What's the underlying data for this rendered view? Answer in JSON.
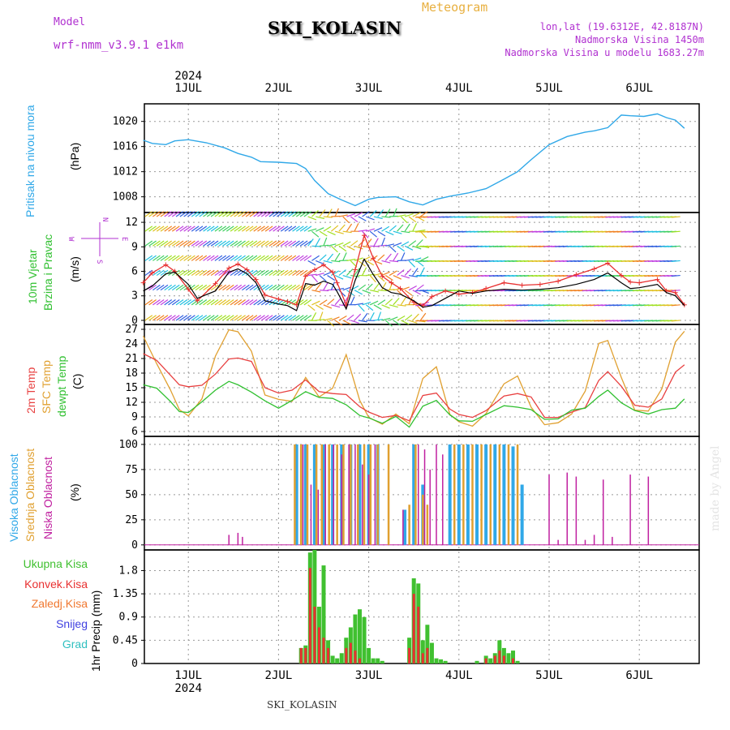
{
  "header": {
    "model_label": "Model",
    "model_name": "wrf-nmm_v3.9.1 e1km",
    "title": "SKI_KOLASIN",
    "meteogram": "Meteogram",
    "lonlat": "lon,lat (19.6312E, 42.8187N)",
    "altitude": "Nadmorska Visina 1450m",
    "model_altitude": "Nadmorska Visina u modelu 1683.27m",
    "year_top": "2024",
    "year_bottom": "2024",
    "footer": "SKI_KOLASIN",
    "made_by": "made by Angel"
  },
  "colors": {
    "pressure": "#30a8e8",
    "wind_speed": "#000000",
    "wind_gust": "#e83030",
    "temp2m": "#e84040",
    "sfc_temp": "#e0a030",
    "dewpoint": "#30c030",
    "high_cloud": "#30a8e8",
    "mid_cloud": "#e0a030",
    "low_cloud": "#c020a0",
    "total_precip": "#40c030",
    "convective": "#e83030",
    "frozen": "#f07830",
    "snow": "#4040e0",
    "graupel": "#30c0c0"
  },
  "chart_data": [
    {
      "type": "line",
      "panel": "pressure",
      "labels": [
        "Pritisak na nivou mora",
        "(hPa)"
      ],
      "x_ticks": [
        "1JUL",
        "2JUL",
        "3JUL",
        "4JUL",
        "5JUL",
        "6JUL"
      ],
      "x_range_days": [
        0.5,
        6.5
      ],
      "ylim": [
        1005.5,
        1022.8
      ],
      "y_ticks": [
        1008,
        1012,
        1016,
        1020
      ],
      "series": [
        {
          "x": [
            0.5,
            0.6,
            0.75,
            0.85,
            1.0,
            1.2,
            1.4,
            1.55,
            1.7,
            1.8,
            2.0,
            2.2,
            2.3,
            2.4,
            2.55,
            2.7,
            2.85,
            3.0,
            3.1,
            3.3,
            3.45,
            3.6,
            3.75,
            3.9,
            4.1,
            4.3,
            4.5,
            4.65,
            4.8,
            5.0,
            5.2,
            5.4,
            5.5,
            5.65,
            5.8,
            5.9,
            6.05,
            6.2,
            6.3,
            6.4,
            6.5
          ],
          "y": [
            1017.0,
            1016.5,
            1016.3,
            1016.9,
            1017.1,
            1016.6,
            1015.8,
            1014.9,
            1014.3,
            1013.6,
            1013.5,
            1013.3,
            1012.5,
            1010.6,
            1008.5,
            1007.5,
            1006.6,
            1007.6,
            1007.9,
            1008.0,
            1007.2,
            1006.7,
            1007.6,
            1008.1,
            1008.6,
            1009.3,
            1010.8,
            1012.0,
            1013.9,
            1016.3,
            1017.6,
            1018.3,
            1018.5,
            1019.0,
            1021.0,
            1020.9,
            1020.8,
            1021.2,
            1020.6,
            1020.2,
            1018.9
          ]
        }
      ]
    },
    {
      "type": "line",
      "panel": "wind",
      "labels": [
        "10m Vjetar",
        "Brzina i Pravac",
        "(m/s)",
        "N",
        "E",
        "S",
        "W"
      ],
      "ylim": [
        -0.5,
        13.2
      ],
      "y_ticks": [
        0,
        3,
        6,
        9,
        12
      ],
      "series": [
        {
          "name": "speed",
          "x": [
            0.5,
            0.6,
            0.75,
            0.85,
            1.0,
            1.1,
            1.3,
            1.45,
            1.55,
            1.65,
            1.75,
            1.85,
            2.0,
            2.1,
            2.2,
            2.3,
            2.4,
            2.5,
            2.6,
            2.65,
            2.75,
            2.85,
            2.95,
            3.05,
            3.15,
            3.25,
            3.35,
            3.5,
            3.6,
            3.7,
            3.85,
            4.0,
            4.15,
            4.3,
            4.5,
            4.7,
            4.9,
            5.1,
            5.3,
            5.5,
            5.65,
            5.8,
            5.9,
            6.0,
            6.2,
            6.3,
            6.4,
            6.5
          ],
          "y": [
            3.6,
            4.2,
            5.7,
            5.9,
            4.4,
            2.7,
            3.6,
            5.9,
            6.3,
            5.7,
            4.6,
            2.4,
            2.0,
            1.8,
            1.2,
            4.5,
            4.3,
            4.8,
            4.4,
            3.5,
            1.4,
            4.9,
            7.5,
            5.6,
            4.0,
            3.4,
            3.2,
            2.4,
            1.6,
            1.8,
            2.7,
            3.6,
            3.3,
            3.6,
            3.8,
            3.7,
            3.8,
            4.0,
            4.4,
            5.0,
            5.8,
            4.6,
            3.9,
            4.0,
            4.4,
            3.4,
            3.0,
            1.8
          ]
        },
        {
          "name": "gust",
          "x": [
            0.5,
            0.6,
            0.75,
            0.85,
            1.0,
            1.1,
            1.3,
            1.45,
            1.55,
            1.65,
            1.75,
            1.85,
            2.0,
            2.1,
            2.2,
            2.3,
            2.4,
            2.5,
            2.6,
            2.65,
            2.75,
            2.85,
            2.95,
            3.05,
            3.15,
            3.25,
            3.35,
            3.5,
            3.6,
            3.7,
            3.85,
            4.0,
            4.15,
            4.3,
            4.5,
            4.7,
            4.9,
            5.1,
            5.3,
            5.5,
            5.65,
            5.8,
            5.9,
            6.0,
            6.2,
            6.3,
            6.4,
            6.5
          ],
          "y": [
            4.6,
            5.8,
            6.8,
            6.0,
            3.8,
            2.4,
            4.5,
            6.4,
            6.9,
            6.2,
            5.0,
            3.1,
            2.6,
            2.3,
            1.9,
            5.4,
            6.2,
            6.8,
            5.9,
            4.6,
            1.9,
            6.2,
            10.4,
            7.6,
            5.4,
            4.6,
            3.9,
            2.2,
            1.8,
            2.9,
            3.6,
            3.2,
            3.4,
            3.9,
            4.6,
            4.3,
            4.4,
            4.8,
            5.6,
            6.3,
            7.0,
            5.5,
            4.7,
            4.6,
            5.0,
            3.6,
            3.4,
            1.9
          ]
        }
      ]
    },
    {
      "type": "line",
      "panel": "temperature",
      "labels": [
        "2m Temp",
        "SFC Temp",
        "dewpt Temp",
        "(C)"
      ],
      "ylim": [
        5,
        28
      ],
      "y_ticks": [
        6,
        9,
        12,
        15,
        18,
        21,
        24,
        27
      ],
      "series": [
        {
          "name": "2m Temp",
          "x": [
            0.5,
            0.65,
            0.8,
            0.9,
            1.0,
            1.15,
            1.3,
            1.45,
            1.55,
            1.7,
            1.85,
            2.0,
            2.15,
            2.3,
            2.45,
            2.6,
            2.75,
            2.9,
            3.0,
            3.15,
            3.3,
            3.45,
            3.6,
            3.75,
            3.9,
            4.0,
            4.15,
            4.3,
            4.5,
            4.65,
            4.8,
            4.95,
            5.1,
            5.25,
            5.4,
            5.55,
            5.65,
            5.8,
            5.95,
            6.1,
            6.25,
            6.4,
            6.5
          ],
          "y": [
            22.0,
            20.6,
            17.6,
            15.6,
            15.2,
            15.5,
            17.8,
            20.9,
            21.1,
            20.4,
            15.0,
            13.9,
            14.5,
            16.6,
            14.2,
            13.8,
            13.6,
            11.1,
            10.0,
            8.9,
            9.3,
            8.2,
            13.4,
            13.9,
            10.6,
            9.5,
            8.9,
            10.3,
            13.3,
            13.8,
            13.1,
            8.9,
            8.9,
            10.0,
            10.9,
            16.5,
            18.3,
            15.3,
            11.4,
            11.0,
            12.7,
            18.2,
            19.7
          ]
        },
        {
          "name": "SFC Temp",
          "x": [
            0.5,
            0.65,
            0.8,
            0.9,
            1.0,
            1.15,
            1.3,
            1.45,
            1.55,
            1.7,
            1.85,
            2.0,
            2.15,
            2.3,
            2.45,
            2.6,
            2.75,
            2.9,
            3.0,
            3.15,
            3.3,
            3.45,
            3.6,
            3.75,
            3.9,
            4.0,
            4.15,
            4.3,
            4.5,
            4.65,
            4.8,
            4.95,
            5.1,
            5.25,
            5.4,
            5.55,
            5.65,
            5.8,
            5.95,
            6.1,
            6.25,
            6.4,
            6.5
          ],
          "y": [
            25.6,
            19.9,
            14.6,
            10.5,
            9.2,
            12.7,
            21.5,
            26.9,
            26.5,
            22.5,
            13.5,
            12.6,
            12.2,
            17.1,
            13.1,
            14.9,
            21.8,
            12.4,
            8.9,
            7.5,
            9.6,
            7.6,
            16.9,
            19.3,
            9.5,
            8.0,
            7.1,
            9.7,
            15.8,
            17.4,
            11.0,
            7.4,
            7.8,
            9.6,
            14.3,
            24.1,
            24.7,
            17.1,
            10.4,
            10.2,
            14.8,
            24.4,
            26.6
          ]
        },
        {
          "name": "dewpt Temp",
          "x": [
            0.5,
            0.65,
            0.8,
            0.9,
            1.0,
            1.15,
            1.3,
            1.45,
            1.55,
            1.7,
            1.85,
            2.0,
            2.15,
            2.3,
            2.45,
            2.6,
            2.75,
            2.9,
            3.0,
            3.15,
            3.3,
            3.45,
            3.6,
            3.75,
            3.9,
            4.0,
            4.15,
            4.3,
            4.5,
            4.65,
            4.8,
            4.95,
            5.1,
            5.25,
            5.4,
            5.55,
            5.65,
            5.8,
            5.95,
            6.1,
            6.25,
            6.4,
            6.5
          ],
          "y": [
            15.6,
            14.9,
            12.2,
            10.1,
            9.9,
            12.1,
            14.5,
            16.3,
            15.6,
            14.1,
            12.3,
            10.8,
            12.4,
            14.2,
            13.0,
            12.8,
            11.5,
            9.3,
            8.8,
            7.7,
            9.1,
            6.9,
            11.2,
            12.4,
            9.4,
            8.2,
            8.1,
            9.5,
            11.3,
            11.0,
            10.5,
            8.5,
            8.6,
            10.4,
            10.8,
            13.2,
            14.5,
            11.9,
            10.3,
            9.6,
            10.5,
            10.8,
            12.7
          ]
        }
      ]
    },
    {
      "type": "bar",
      "panel": "cloud",
      "labels": [
        "Visoka Oblacnost",
        "Srednja Oblacnost",
        "Niska Oblacnost",
        "(%)"
      ],
      "ylim": [
        -5,
        108
      ],
      "y_ticks": [
        0,
        25,
        50,
        75,
        100
      ],
      "series": [
        {
          "name": "Visoka Oblacnost",
          "x": [
            2.2,
            2.3,
            2.4,
            2.5,
            2.6,
            2.7,
            2.8,
            2.9,
            3.0,
            3.1,
            3.4,
            3.5,
            3.6,
            3.9,
            4.0,
            4.1,
            4.2,
            4.3,
            4.4,
            4.5,
            4.6,
            4.7
          ],
          "values": [
            100,
            100,
            100,
            100,
            100,
            100,
            100,
            100,
            100,
            100,
            35,
            100,
            60,
            100,
            100,
            100,
            100,
            100,
            100,
            100,
            98,
            60
          ]
        },
        {
          "name": "Srednja Oblacnost",
          "x": [
            2.18,
            2.25,
            2.32,
            2.42,
            2.48,
            2.56,
            2.65,
            2.72,
            2.8,
            2.88,
            2.95,
            3.02,
            3.1,
            3.22,
            3.45,
            3.52,
            3.6,
            3.65,
            3.95,
            4.05,
            4.15,
            4.25,
            4.35,
            4.45,
            4.55,
            4.65
          ],
          "values": [
            100,
            100,
            100,
            100,
            100,
            100,
            100,
            100,
            100,
            100,
            100,
            100,
            100,
            100,
            40,
            100,
            50,
            40,
            100,
            100,
            100,
            100,
            100,
            100,
            100,
            100
          ]
        },
        {
          "name": "Niska Oblacnost",
          "x": [
            1.45,
            1.55,
            1.6,
            2.27,
            2.36,
            2.44,
            2.52,
            2.61,
            2.7,
            2.78,
            2.85,
            2.93,
            3.0,
            3.07,
            3.38,
            3.55,
            3.62,
            3.68,
            3.75,
            3.82,
            5.0,
            5.1,
            5.2,
            5.3,
            5.4,
            5.5,
            5.6,
            5.7,
            5.9,
            6.1
          ],
          "values": [
            10,
            12,
            8,
            100,
            60,
            55,
            100,
            100,
            90,
            100,
            100,
            80,
            70,
            100,
            35,
            100,
            95,
            75,
            100,
            90,
            70,
            5,
            72,
            68,
            5,
            10,
            65,
            8,
            70,
            68
          ]
        }
      ]
    },
    {
      "type": "bar",
      "panel": "precip",
      "labels": [
        "Ukupna Kisa",
        "Konvek.Kisa",
        "Zaledj.Kisa",
        "Snijeg",
        "Grad",
        "1hr Precip (mm)"
      ],
      "ylim": [
        0,
        2.2
      ],
      "y_ticks": [
        0,
        0.45,
        0.9,
        1.35,
        1.8
      ],
      "y_tick_labels": [
        "0",
        "0.45",
        "0.9",
        "1.35",
        "1.8"
      ],
      "series": [
        {
          "name": "Ukupna Kisa",
          "x": [
            2.25,
            2.3,
            2.35,
            2.4,
            2.45,
            2.5,
            2.55,
            2.6,
            2.65,
            2.7,
            2.75,
            2.8,
            2.85,
            2.9,
            2.95,
            3.0,
            3.05,
            3.1,
            3.15,
            3.45,
            3.5,
            3.55,
            3.6,
            3.65,
            3.7,
            3.75,
            3.8,
            3.85,
            4.2,
            4.3,
            4.35,
            4.4,
            4.45,
            4.5,
            4.55,
            4.6,
            4.65
          ],
          "values": [
            0.3,
            0.35,
            2.15,
            2.2,
            1.1,
            1.9,
            0.45,
            0.15,
            0.1,
            0.2,
            0.5,
            0.7,
            0.95,
            1.05,
            0.9,
            0.3,
            0.1,
            0.1,
            0.05,
            0.5,
            1.65,
            1.55,
            0.45,
            0.75,
            0.4,
            0.1,
            0.08,
            0.05,
            0.05,
            0.15,
            0.1,
            0.2,
            0.45,
            0.3,
            0.2,
            0.25,
            0.05
          ]
        },
        {
          "name": "Konvek.Kisa",
          "x": [
            2.25,
            2.3,
            2.35,
            2.4,
            2.45,
            2.5,
            2.55,
            2.75,
            2.8,
            2.85,
            2.9,
            3.45,
            3.5,
            3.55,
            3.6,
            3.65,
            4.3,
            4.4,
            4.45,
            4.5,
            4.6
          ],
          "values": [
            0.3,
            0.3,
            1.85,
            1.1,
            0.7,
            0.5,
            0.3,
            0.3,
            0.4,
            0.25,
            0.1,
            0.3,
            1.35,
            1.1,
            0.2,
            0.3,
            0.1,
            0.15,
            0.25,
            0.15,
            0.1
          ]
        }
      ]
    }
  ]
}
